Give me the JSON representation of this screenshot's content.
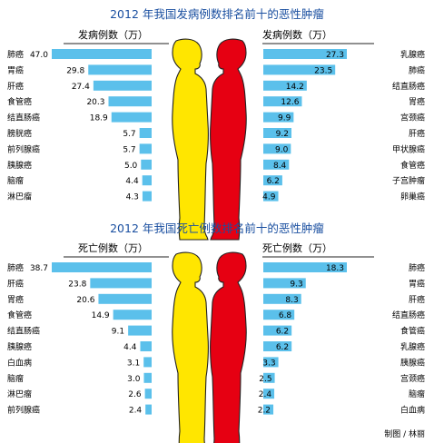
{
  "colors": {
    "bar": "#5bc0eb",
    "title": "#1a4fa0",
    "male": "#ffe600",
    "female": "#e60012",
    "rule": "#222222"
  },
  "credit": "制图 / 林丽",
  "chart_data": [
    {
      "type": "bar",
      "title": "2012 年我国发病例数排名前十的恶性肿瘤",
      "figure_labels": {
        "male": "男性",
        "female": "女性"
      },
      "male": {
        "unit_label": "发病例数（万）",
        "categories": [
          "肺癌",
          "胃癌",
          "肝癌",
          "食管癌",
          "结直肠癌",
          "膀胱癌",
          "前列腺癌",
          "胰腺癌",
          "脑瘤",
          "淋巴瘤"
        ],
        "values": [
          47.0,
          29.8,
          27.4,
          20.3,
          18.9,
          5.7,
          5.7,
          5.0,
          4.4,
          4.3
        ],
        "value_labels": [
          "47.0",
          "29.8",
          "27.4",
          "20.3",
          "18.9",
          "5.7",
          "5.7",
          "5.0",
          "4.4",
          "4.3"
        ]
      },
      "female": {
        "unit_label": "发病例数（万）",
        "categories": [
          "乳腺癌",
          "肺癌",
          "结直肠癌",
          "胃癌",
          "宫颈癌",
          "肝癌",
          "甲状腺癌",
          "食管癌",
          "子宫肿瘤",
          "卵巢癌"
        ],
        "values": [
          27.3,
          23.5,
          14.2,
          12.6,
          9.9,
          9.2,
          9.0,
          8.4,
          6.2,
          4.9
        ],
        "value_labels": [
          "27.3",
          "23.5",
          "14.2",
          "12.6",
          "9.9",
          "9.2",
          "9.0",
          "8.4",
          "6.2",
          "4.9"
        ]
      }
    },
    {
      "type": "bar",
      "title": "2012 年我国死亡例数排名前十的恶性肿瘤",
      "figure_labels": {
        "male": "男性",
        "female": "女性"
      },
      "male": {
        "unit_label": "死亡例数（万）",
        "categories": [
          "肺癌",
          "肝癌",
          "胃癌",
          "食管癌",
          "结直肠癌",
          "胰腺癌",
          "白血病",
          "脑瘤",
          "淋巴瘤",
          "前列腺癌"
        ],
        "values": [
          38.7,
          23.8,
          20.6,
          14.9,
          9.1,
          4.4,
          3.1,
          3.0,
          2.6,
          2.4
        ],
        "value_labels": [
          "38.7",
          "23.8",
          "20.6",
          "14.9",
          "9.1",
          "4.4",
          "3.1",
          "3.0",
          "2.6",
          "2.4"
        ]
      },
      "female": {
        "unit_label": "死亡例数（万）",
        "categories": [
          "肺癌",
          "胃癌",
          "肝癌",
          "结直肠癌",
          "食管癌",
          "乳腺癌",
          "胰腺癌",
          "宫颈癌",
          "脑瘤",
          "白血病"
        ],
        "values": [
          18.3,
          9.3,
          8.3,
          6.8,
          6.2,
          6.2,
          3.3,
          2.5,
          2.4,
          2.2
        ],
        "value_labels": [
          "18.3",
          "9.3",
          "8.3",
          "6.8",
          "6.2",
          "6.2",
          "3.3",
          "2.5",
          "2.4",
          "2.2"
        ]
      }
    }
  ]
}
